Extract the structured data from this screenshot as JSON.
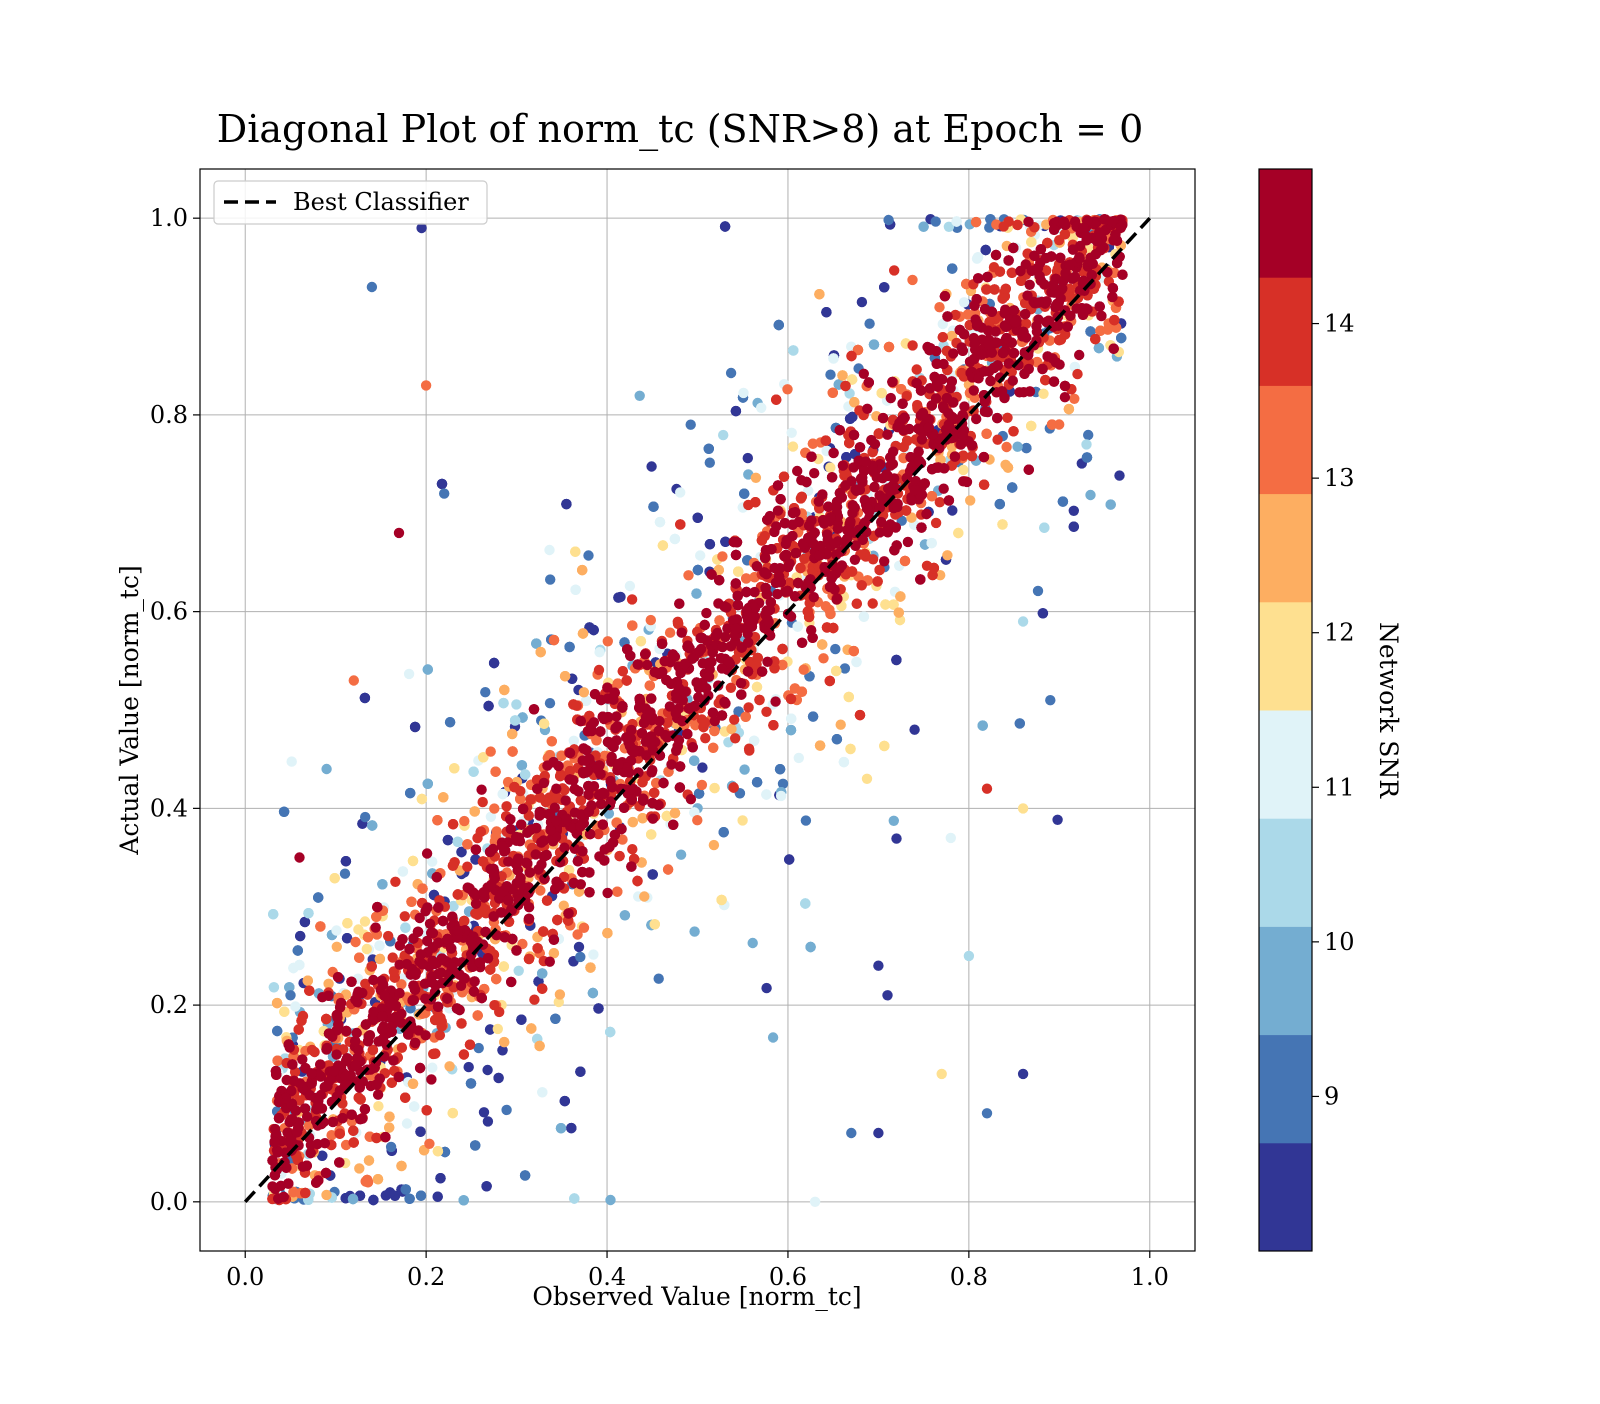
{
  "chart_data": {
    "type": "scatter",
    "title": "Diagonal Plot of norm_tc (SNR>8) at Epoch = 0",
    "xlabel": "Observed Value [norm_tc]",
    "ylabel": "Actual Value [norm_tc]",
    "xlim": [
      -0.05,
      1.05
    ],
    "ylim": [
      -0.05,
      1.05
    ],
    "xticks": [
      0.0,
      0.2,
      0.4,
      0.6,
      0.8,
      1.0
    ],
    "yticks": [
      0.0,
      0.2,
      0.4,
      0.6,
      0.8,
      1.0
    ],
    "xtick_labels": [
      "0.0",
      "0.2",
      "0.4",
      "0.6",
      "0.8",
      "1.0"
    ],
    "ytick_labels": [
      "0.0",
      "0.2",
      "0.4",
      "0.6",
      "0.8",
      "1.0"
    ],
    "grid": true,
    "legend": {
      "placement": "upper-left",
      "entries": [
        {
          "label": "Best Classifier",
          "style": "black dashed line"
        }
      ]
    },
    "reference_line": {
      "name": "Best Classifier",
      "x": [
        0.0,
        1.0
      ],
      "y": [
        0.0,
        1.0
      ],
      "color": "#000000"
    },
    "scatter_description": "Several thousand points concentrated along the diagonal y = x; high Network SNR points (dark red) form the core band, lower SNR points (blue) scatter further from the diagonal.",
    "colorbar": {
      "label": "Network SNR",
      "range": [
        8.0,
        15.0
      ],
      "ticks": [
        9,
        10,
        11,
        12,
        13,
        14
      ],
      "tick_labels": [
        "9",
        "10",
        "11",
        "12",
        "13",
        "14"
      ],
      "colors": [
        "#313695",
        "#4575b4",
        "#74add1",
        "#abd9e9",
        "#e0f3f8",
        "#fee090",
        "#fdae61",
        "#f46d43",
        "#d73027",
        "#a50026"
      ]
    },
    "outliers": [
      {
        "x": 0.14,
        "y": 0.93,
        "snr": 9.2
      },
      {
        "x": 0.195,
        "y": 0.99,
        "snr": 8.3
      },
      {
        "x": 0.17,
        "y": 0.68,
        "snr": 14.8
      },
      {
        "x": 0.2,
        "y": 0.83,
        "snr": 13.2
      },
      {
        "x": 0.89,
        "y": 0.51,
        "snr": 9.1
      },
      {
        "x": 0.82,
        "y": 0.42,
        "snr": 13.8
      },
      {
        "x": 0.86,
        "y": 0.4,
        "snr": 12.2
      },
      {
        "x": 0.86,
        "y": 0.13,
        "snr": 8.3
      },
      {
        "x": 0.82,
        "y": 0.09,
        "snr": 9.1
      },
      {
        "x": 0.8,
        "y": 0.25,
        "snr": 10.7
      },
      {
        "x": 0.78,
        "y": 0.37,
        "snr": 11.2
      },
      {
        "x": 0.77,
        "y": 0.13,
        "snr": 11.9
      },
      {
        "x": 0.71,
        "y": 0.21,
        "snr": 8.3
      },
      {
        "x": 0.7,
        "y": 0.07,
        "snr": 8.3
      },
      {
        "x": 0.74,
        "y": 0.48,
        "snr": 8.3
      },
      {
        "x": 0.06,
        "y": 0.35,
        "snr": 14.8
      },
      {
        "x": 0.22,
        "y": 0.72,
        "snr": 9.1
      },
      {
        "x": 0.09,
        "y": 0.44,
        "snr": 9.6
      },
      {
        "x": 0.12,
        "y": 0.53,
        "snr": 13.2
      },
      {
        "x": 0.05,
        "y": 0.21,
        "snr": 9.1
      },
      {
        "x": 0.63,
        "y": 0.0,
        "snr": 11.3
      },
      {
        "x": 0.86,
        "y": 0.59,
        "snr": 10.4
      },
      {
        "x": 0.93,
        "y": 0.77,
        "snr": 10.4
      },
      {
        "x": 0.67,
        "y": 0.07,
        "snr": 9.3
      },
      {
        "x": 0.7,
        "y": 0.24,
        "snr": 8.3
      }
    ]
  }
}
